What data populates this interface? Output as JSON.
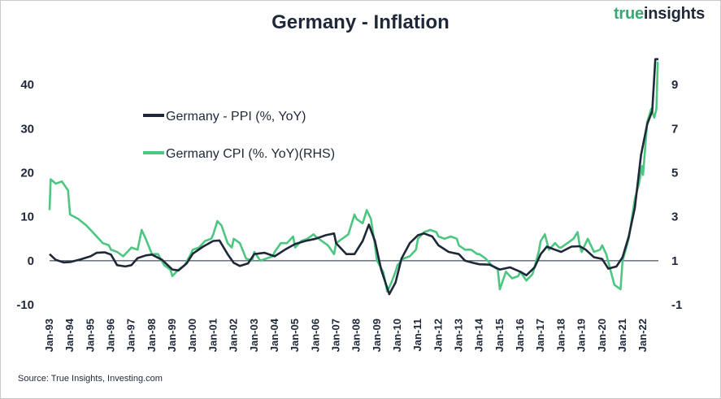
{
  "header": {
    "title": "Germany - Inflation",
    "brand_part1": "true",
    "brand_part2": "insights"
  },
  "source": "Source: True Insights, Investing.com",
  "colors": {
    "ppi": "#1e2838",
    "cpi": "#4cc680",
    "text": "#1e2838",
    "axis": "#1e2838",
    "brand": "#3aa873"
  },
  "chart_data": {
    "type": "line",
    "title": "Germany - Inflation",
    "grid": false,
    "legend_position": "top-left",
    "x_tick_labels": [
      "Jan-93",
      "Jan-94",
      "Jan-95",
      "Jan-96",
      "Jan-97",
      "Jan-98",
      "Jan-99",
      "Jan-00",
      "Jan-01",
      "Jan-02",
      "Jan-03",
      "Jan-04",
      "Jan-05",
      "Jan-06",
      "Jan-07",
      "Jan-08",
      "Jan-09",
      "Jan-10",
      "Jan-11",
      "Jan-12",
      "Jan-13",
      "Jan-14",
      "Jan-15",
      "Jan-16",
      "Jan-17",
      "Jan-18",
      "Jan-19",
      "Jan-20",
      "Jan-21",
      "Jan-22"
    ],
    "x_range": [
      1993.0,
      2022.75
    ],
    "y_left": {
      "min": -10,
      "max": 50,
      "ticks": [
        -10,
        0,
        10,
        20,
        30,
        40
      ]
    },
    "y_right": {
      "min": -1,
      "max": 11,
      "ticks": [
        -1,
        1,
        3,
        5,
        7,
        9
      ]
    },
    "series": [
      {
        "name": "Germany - PPI (%, YoY)",
        "axis": "left",
        "points": [
          [
            1993.0,
            1.5
          ],
          [
            1993.3,
            0.2
          ],
          [
            1993.7,
            -0.4
          ],
          [
            1994.0,
            -0.3
          ],
          [
            1994.5,
            0.3
          ],
          [
            1995.0,
            1.0
          ],
          [
            1995.3,
            1.8
          ],
          [
            1995.7,
            1.9
          ],
          [
            1996.0,
            1.4
          ],
          [
            1996.3,
            -1.0
          ],
          [
            1996.7,
            -1.3
          ],
          [
            1997.0,
            -1.0
          ],
          [
            1997.3,
            0.6
          ],
          [
            1997.7,
            1.2
          ],
          [
            1998.0,
            1.4
          ],
          [
            1998.5,
            0.2
          ],
          [
            1999.0,
            -2.0
          ],
          [
            1999.3,
            -2.2
          ],
          [
            1999.7,
            -0.6
          ],
          [
            2000.0,
            1.6
          ],
          [
            2000.5,
            3.2
          ],
          [
            2001.0,
            4.5
          ],
          [
            2001.3,
            4.6
          ],
          [
            2001.7,
            1.5
          ],
          [
            2002.0,
            -0.5
          ],
          [
            2002.3,
            -1.2
          ],
          [
            2002.7,
            -0.6
          ],
          [
            2003.0,
            1.5
          ],
          [
            2003.5,
            1.8
          ],
          [
            2004.0,
            1.0
          ],
          [
            2004.5,
            2.5
          ],
          [
            2005.0,
            3.8
          ],
          [
            2005.5,
            4.5
          ],
          [
            2006.0,
            5.0
          ],
          [
            2006.5,
            5.8
          ],
          [
            2006.9,
            6.2
          ],
          [
            2007.0,
            4.0
          ],
          [
            2007.5,
            1.5
          ],
          [
            2007.9,
            1.5
          ],
          [
            2008.3,
            4.5
          ],
          [
            2008.6,
            8.2
          ],
          [
            2008.9,
            4.5
          ],
          [
            2009.2,
            -2.0
          ],
          [
            2009.6,
            -7.6
          ],
          [
            2009.9,
            -5.0
          ],
          [
            2010.2,
            0.5
          ],
          [
            2010.6,
            4.0
          ],
          [
            2011.0,
            5.8
          ],
          [
            2011.3,
            6.2
          ],
          [
            2011.7,
            5.5
          ],
          [
            2012.0,
            3.5
          ],
          [
            2012.5,
            2.0
          ],
          [
            2013.0,
            1.5
          ],
          [
            2013.3,
            0.0
          ],
          [
            2013.7,
            -0.5
          ],
          [
            2014.0,
            -0.8
          ],
          [
            2014.5,
            -0.9
          ],
          [
            2015.0,
            -2.0
          ],
          [
            2015.5,
            -1.5
          ],
          [
            2016.0,
            -2.5
          ],
          [
            2016.3,
            -3.3
          ],
          [
            2016.7,
            -1.5
          ],
          [
            2017.0,
            1.5
          ],
          [
            2017.3,
            3.2
          ],
          [
            2017.7,
            2.5
          ],
          [
            2018.0,
            2.0
          ],
          [
            2018.5,
            3.2
          ],
          [
            2018.9,
            3.3
          ],
          [
            2019.2,
            2.5
          ],
          [
            2019.6,
            0.8
          ],
          [
            2020.0,
            0.4
          ],
          [
            2020.3,
            -1.8
          ],
          [
            2020.7,
            -1.3
          ],
          [
            2021.0,
            0.8
          ],
          [
            2021.3,
            5.5
          ],
          [
            2021.6,
            12.0
          ],
          [
            2021.9,
            24.0
          ],
          [
            2022.2,
            31.0
          ],
          [
            2022.45,
            34.0
          ],
          [
            2022.6,
            45.8
          ],
          [
            2022.75,
            45.8
          ]
        ]
      },
      {
        "name": "Germany CPI (%. YoY)(RHS)",
        "axis": "right",
        "points": [
          [
            1993.0,
            3.3
          ],
          [
            1993.05,
            4.7
          ],
          [
            1993.3,
            4.5
          ],
          [
            1993.6,
            4.6
          ],
          [
            1993.9,
            4.2
          ],
          [
            1994.0,
            3.1
          ],
          [
            1994.4,
            2.9
          ],
          [
            1994.8,
            2.6
          ],
          [
            1995.0,
            2.4
          ],
          [
            1995.3,
            2.1
          ],
          [
            1995.6,
            1.8
          ],
          [
            1995.9,
            1.7
          ],
          [
            1996.0,
            1.5
          ],
          [
            1996.3,
            1.4
          ],
          [
            1996.6,
            1.2
          ],
          [
            1996.9,
            1.5
          ],
          [
            1997.0,
            1.6
          ],
          [
            1997.3,
            1.5
          ],
          [
            1997.5,
            2.4
          ],
          [
            1997.7,
            2.0
          ],
          [
            1998.0,
            1.3
          ],
          [
            1998.3,
            1.3
          ],
          [
            1998.6,
            0.8
          ],
          [
            1998.9,
            0.6
          ],
          [
            1999.0,
            0.3
          ],
          [
            1999.3,
            0.6
          ],
          [
            1999.6,
            0.8
          ],
          [
            1999.9,
            1.3
          ],
          [
            2000.0,
            1.5
          ],
          [
            2000.3,
            1.6
          ],
          [
            2000.6,
            1.9
          ],
          [
            2000.9,
            2.0
          ],
          [
            2001.0,
            2.2
          ],
          [
            2001.2,
            2.8
          ],
          [
            2001.4,
            2.6
          ],
          [
            2001.7,
            1.8
          ],
          [
            2001.9,
            1.6
          ],
          [
            2002.0,
            2.0
          ],
          [
            2002.3,
            1.8
          ],
          [
            2002.6,
            1.1
          ],
          [
            2002.9,
            1.0
          ],
          [
            2003.0,
            1.4
          ],
          [
            2003.3,
            1.0
          ],
          [
            2003.6,
            1.1
          ],
          [
            2003.9,
            1.2
          ],
          [
            2004.0,
            1.4
          ],
          [
            2004.3,
            1.8
          ],
          [
            2004.6,
            1.8
          ],
          [
            2004.9,
            2.1
          ],
          [
            2005.0,
            1.6
          ],
          [
            2005.3,
            1.9
          ],
          [
            2005.6,
            2.0
          ],
          [
            2005.9,
            2.2
          ],
          [
            2006.0,
            2.1
          ],
          [
            2006.3,
            1.9
          ],
          [
            2006.6,
            1.7
          ],
          [
            2006.9,
            1.3
          ],
          [
            2007.0,
            1.8
          ],
          [
            2007.3,
            2.0
          ],
          [
            2007.6,
            2.2
          ],
          [
            2007.9,
            3.1
          ],
          [
            2008.0,
            2.9
          ],
          [
            2008.3,
            2.7
          ],
          [
            2008.5,
            3.3
          ],
          [
            2008.7,
            2.9
          ],
          [
            2008.9,
            1.7
          ],
          [
            2009.0,
            1.0
          ],
          [
            2009.3,
            0.5
          ],
          [
            2009.5,
            -0.4
          ],
          [
            2009.7,
            0.0
          ],
          [
            2009.9,
            0.5
          ],
          [
            2010.0,
            0.8
          ],
          [
            2010.3,
            1.1
          ],
          [
            2010.6,
            1.2
          ],
          [
            2010.9,
            1.5
          ],
          [
            2011.0,
            2.0
          ],
          [
            2011.3,
            2.3
          ],
          [
            2011.6,
            2.4
          ],
          [
            2011.9,
            2.3
          ],
          [
            2012.0,
            2.1
          ],
          [
            2012.3,
            2.0
          ],
          [
            2012.6,
            2.1
          ],
          [
            2012.9,
            2.0
          ],
          [
            2013.0,
            1.7
          ],
          [
            2013.3,
            1.5
          ],
          [
            2013.6,
            1.5
          ],
          [
            2013.9,
            1.3
          ],
          [
            2014.0,
            1.3
          ],
          [
            2014.3,
            1.1
          ],
          [
            2014.6,
            0.8
          ],
          [
            2014.9,
            0.6
          ],
          [
            2015.0,
            -0.3
          ],
          [
            2015.3,
            0.5
          ],
          [
            2015.6,
            0.2
          ],
          [
            2015.9,
            0.3
          ],
          [
            2016.0,
            0.5
          ],
          [
            2016.3,
            0.1
          ],
          [
            2016.6,
            0.4
          ],
          [
            2016.9,
            1.4
          ],
          [
            2017.0,
            1.9
          ],
          [
            2017.2,
            2.2
          ],
          [
            2017.4,
            1.5
          ],
          [
            2017.7,
            1.8
          ],
          [
            2017.9,
            1.6
          ],
          [
            2018.0,
            1.6
          ],
          [
            2018.3,
            1.8
          ],
          [
            2018.6,
            2.0
          ],
          [
            2018.8,
            2.3
          ],
          [
            2018.9,
            1.7
          ],
          [
            2019.0,
            1.4
          ],
          [
            2019.3,
            2.0
          ],
          [
            2019.6,
            1.4
          ],
          [
            2019.9,
            1.5
          ],
          [
            2020.0,
            1.7
          ],
          [
            2020.2,
            1.3
          ],
          [
            2020.4,
            0.6
          ],
          [
            2020.6,
            -0.1
          ],
          [
            2020.9,
            -0.3
          ],
          [
            2021.0,
            1.0
          ],
          [
            2021.3,
            2.0
          ],
          [
            2021.6,
            3.8
          ],
          [
            2021.8,
            4.5
          ],
          [
            2021.95,
            5.3
          ],
          [
            2022.0,
            4.9
          ],
          [
            2022.2,
            7.3
          ],
          [
            2022.4,
            7.9
          ],
          [
            2022.55,
            7.5
          ],
          [
            2022.65,
            7.9
          ],
          [
            2022.72,
            10.0
          ],
          [
            2022.75,
            10.0
          ]
        ]
      }
    ]
  }
}
